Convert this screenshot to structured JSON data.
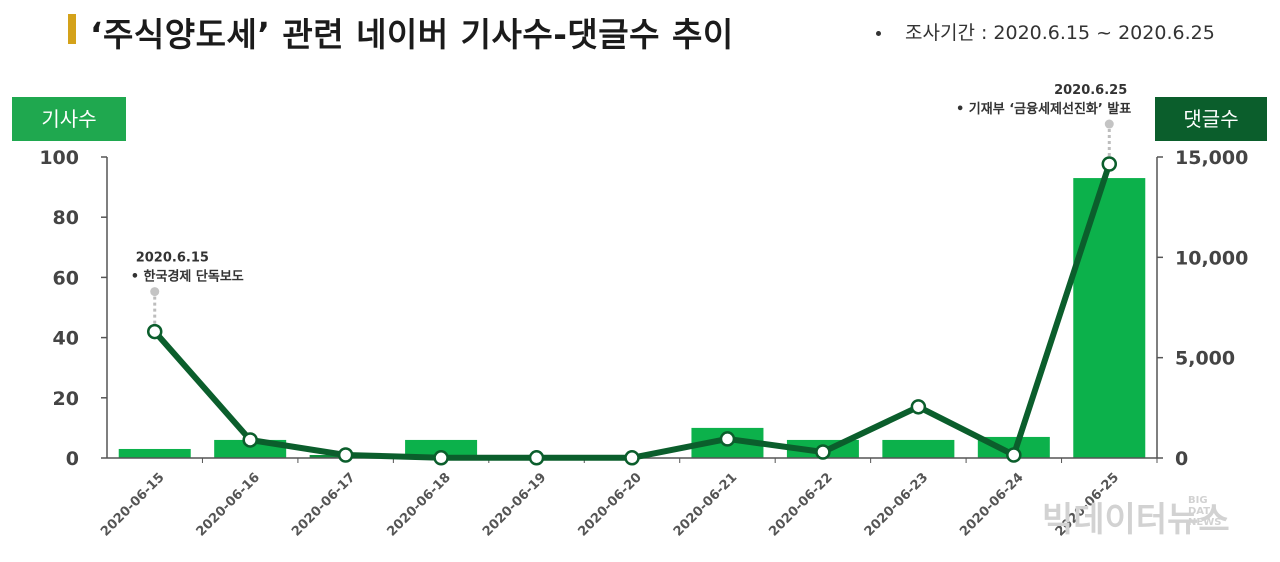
{
  "header": {
    "title": "‘주식양도세’ 관련 네이버 기사수-댓글수 추이",
    "period": "조사기간 : 2020.6.15 ~ 2020.6.25"
  },
  "axis_badges": {
    "left": "기사수",
    "right": "댓글수"
  },
  "watermark": {
    "main": "빅데이터뉴스",
    "sub": "BIG DATA NEWS"
  },
  "colors": {
    "bar": "#0cb14b",
    "bar_partial": "#0e8f3e",
    "line": "#0b5e2c",
    "axis": "#555555",
    "badge_left": "#1fa84f",
    "badge_right": "#0b5e2c",
    "title_accent": "#d4a21a"
  },
  "chart_data": {
    "type": "bar+line",
    "categories": [
      "2020-06-15",
      "2020-06-16",
      "2020-06-17",
      "2020-06-18",
      "2020-06-19",
      "2020-06-20",
      "2020-06-21",
      "2020-06-22",
      "2020-06-23",
      "2020-06-24",
      "2020-06-25"
    ],
    "series": [
      {
        "name": "기사수",
        "type": "bar",
        "axis": "left",
        "values": [
          3,
          6,
          1,
          6,
          0,
          0,
          10,
          6,
          6,
          7,
          93
        ]
      },
      {
        "name": "댓글수",
        "type": "line",
        "axis": "right",
        "values": [
          6300,
          900,
          150,
          10,
          10,
          10,
          950,
          300,
          2550,
          150,
          14650
        ]
      }
    ],
    "left_axis": {
      "range": [
        0,
        100
      ],
      "ticks": [
        "0",
        "20",
        "40",
        "60",
        "80",
        "100"
      ]
    },
    "right_axis": {
      "range": [
        0,
        15000
      ],
      "ticks": [
        "0",
        "5,000",
        "10,000",
        "15,000"
      ]
    },
    "annotations": [
      {
        "category": "2020-06-15",
        "date": "2020.6.15",
        "text": "한국경제 단독보도"
      },
      {
        "category": "2020-06-25",
        "date": "2020.6.25",
        "text": "기재부 ‘금융세제선진화’ 발표"
      }
    ],
    "grid": false
  }
}
